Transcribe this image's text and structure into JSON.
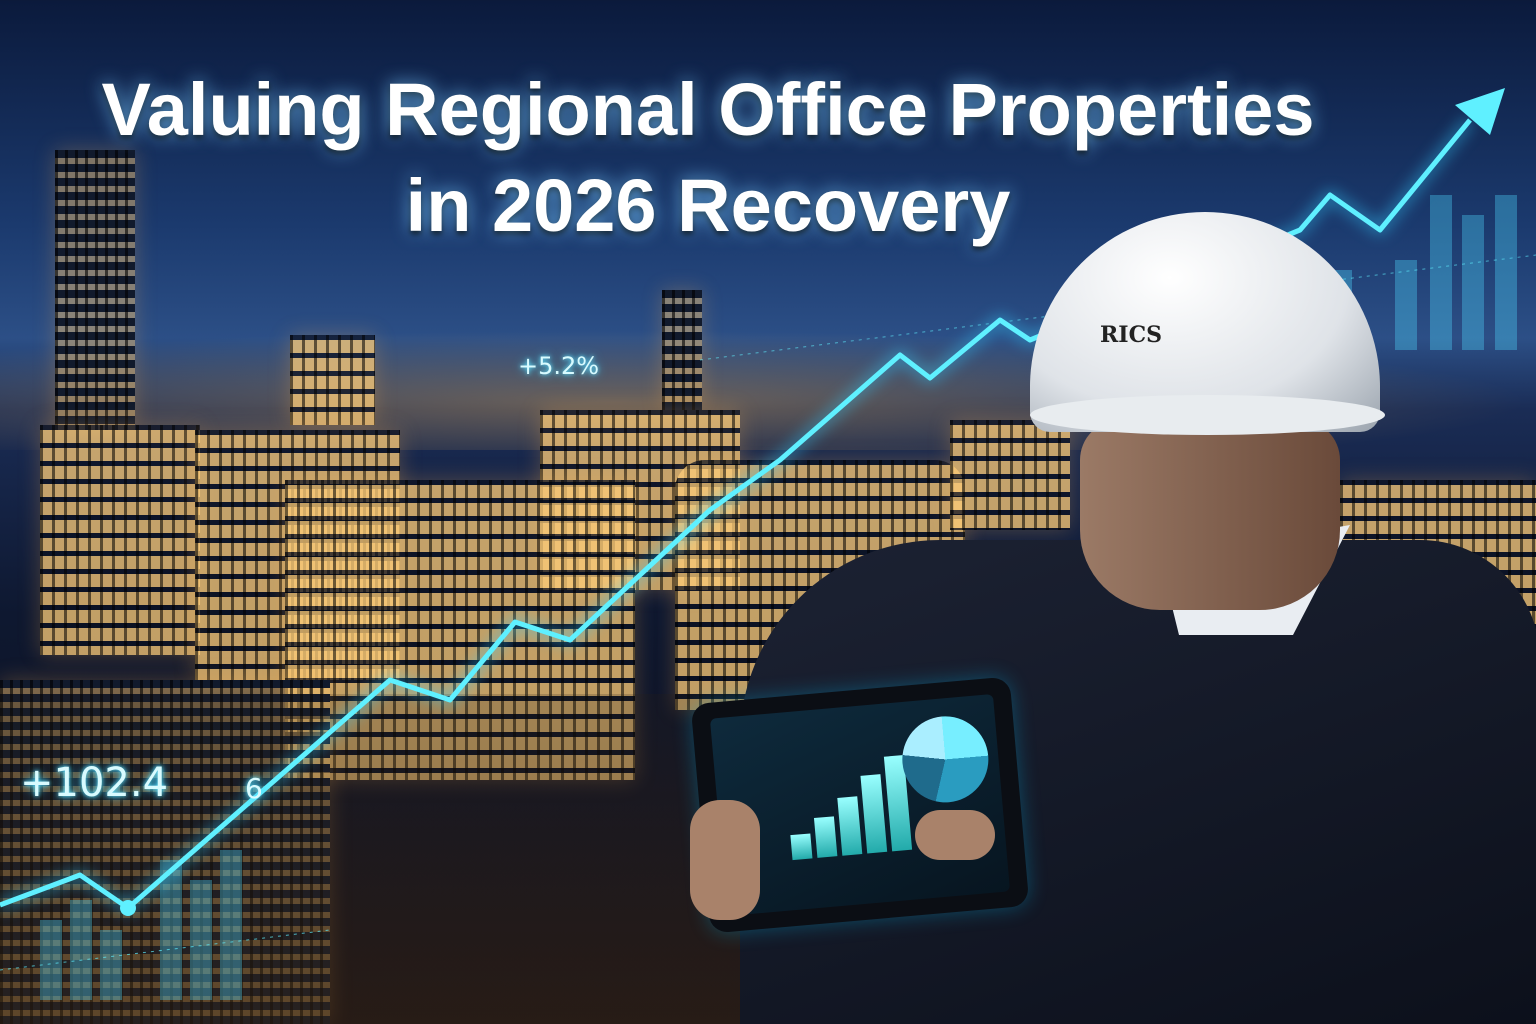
{
  "title": {
    "line1": "Valuing Regional Office Properties",
    "line2": "in 2026 Recovery"
  },
  "overlay_labels": {
    "top_stat": "+5.2%",
    "left_stat": "+102.4",
    "chart_digit": "6"
  },
  "helmet_logo": "RICS",
  "colors": {
    "accent": "#5ff0ff",
    "sky": "#1b3a6e",
    "title": "#ffffff"
  }
}
